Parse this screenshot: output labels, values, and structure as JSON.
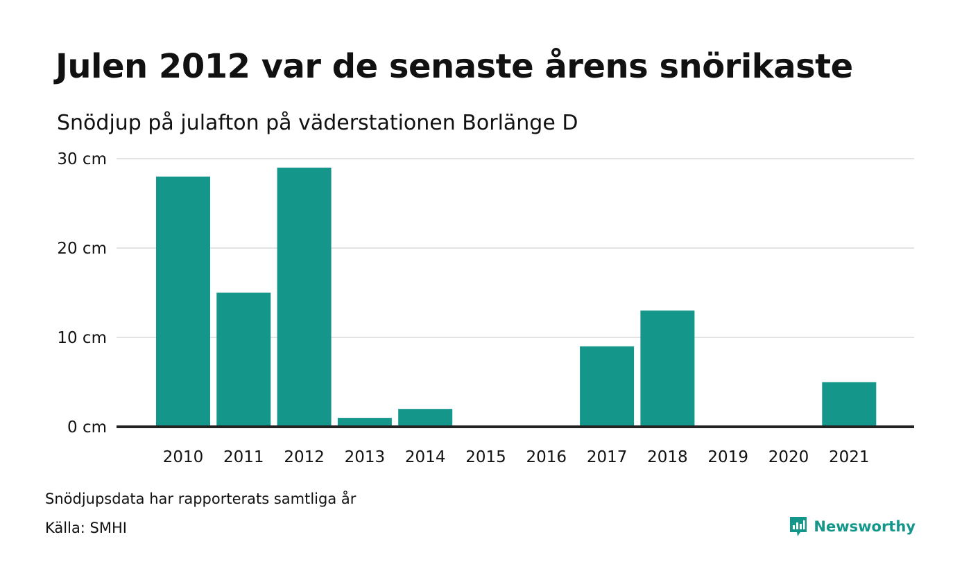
{
  "title": "Julen 2012 var de senaste årens snörikaste",
  "subtitle": "Snödjup på julafton på väderstationen Borlänge D",
  "note": "Snödjupsdata har rapporterats samtliga år",
  "source": "Källa: SMHI",
  "brand": {
    "name": "Newsworthy",
    "logo_icon": "newsworthy-logo-icon",
    "color": "#14968a"
  },
  "colors": {
    "bar": "#14968a",
    "grid": "#e3e3e3",
    "baseline": "#222222"
  },
  "chart_data": {
    "type": "bar",
    "categories": [
      "2010",
      "2011",
      "2012",
      "2013",
      "2014",
      "2015",
      "2016",
      "2017",
      "2018",
      "2019",
      "2020",
      "2021"
    ],
    "values": [
      28,
      15,
      29,
      1,
      2,
      0,
      0,
      9,
      13,
      0,
      0,
      5
    ],
    "ylim": [
      0,
      30
    ],
    "yticks": [
      {
        "value": 0,
        "label": "0 cm"
      },
      {
        "value": 10,
        "label": "10 cm"
      },
      {
        "value": 20,
        "label": "20 cm"
      },
      {
        "value": 30,
        "label": "30 cm"
      }
    ],
    "grid": true,
    "xlabel": "",
    "ylabel": ""
  }
}
